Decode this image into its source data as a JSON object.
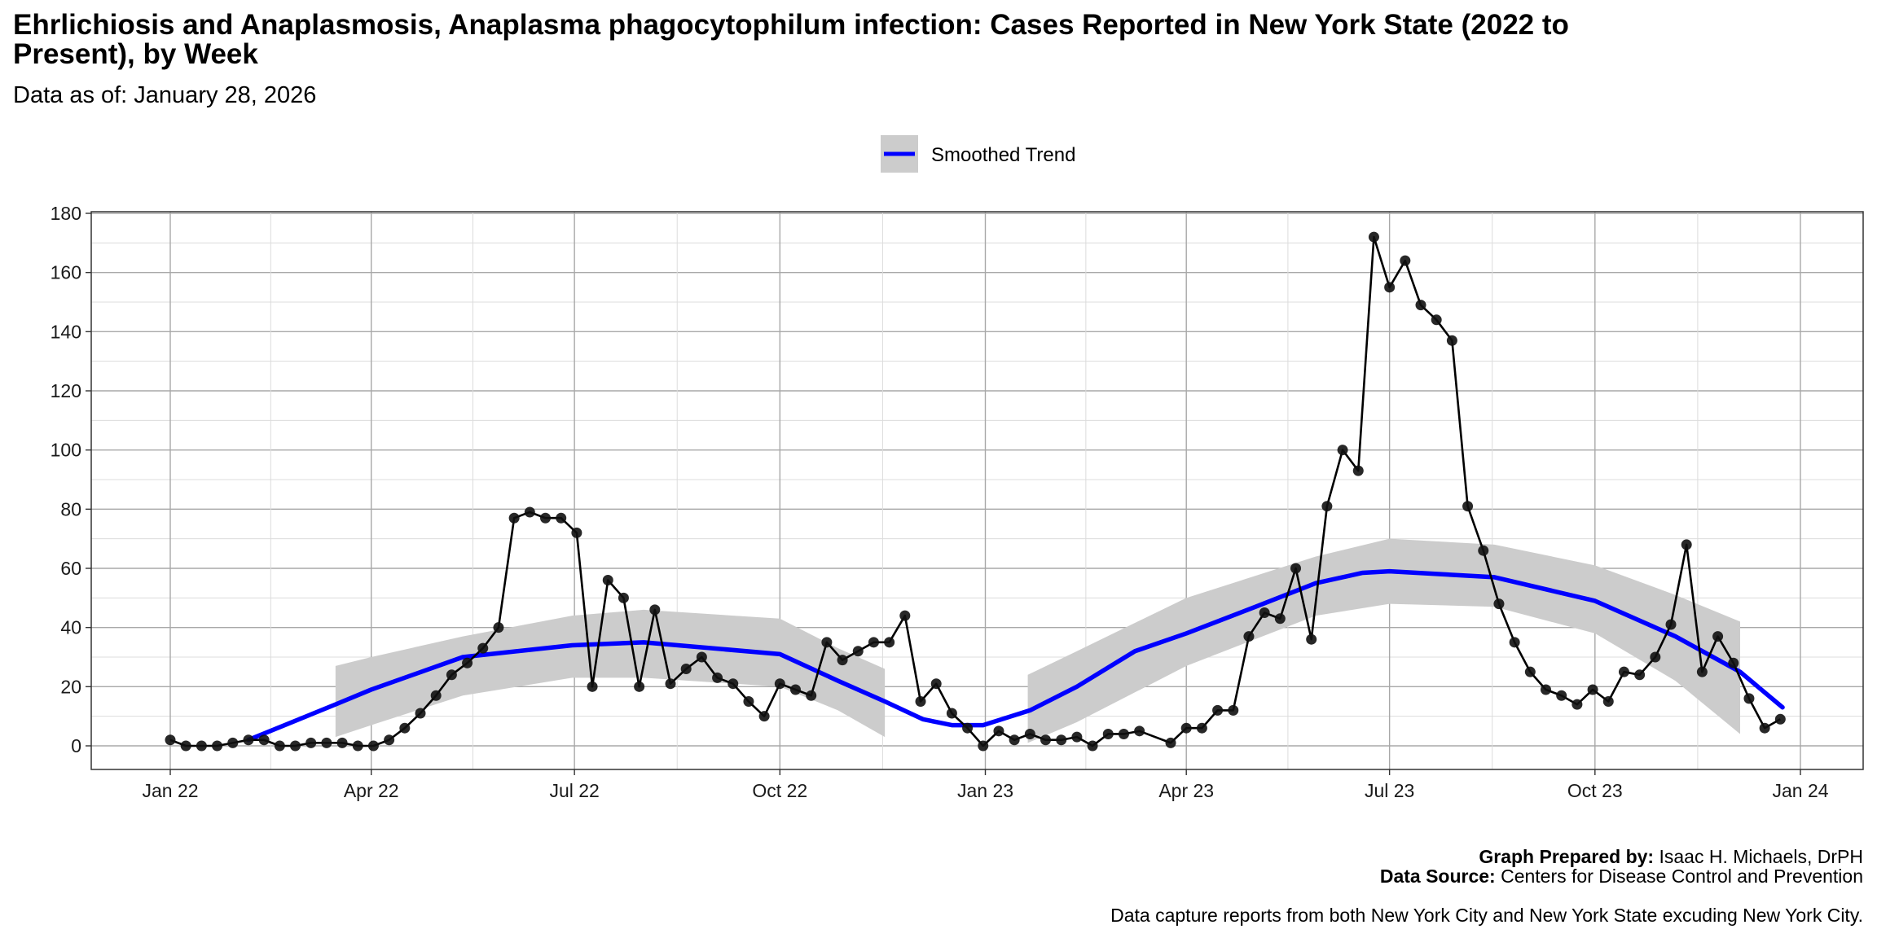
{
  "title_line1": "Ehrlichiosis and Anaplasmosis, Anaplasma phagocytophilum infection: Cases Reported in New York State (2022 to",
  "title_line2": "Present), by Week",
  "subtitle": "Data as of: January 28, 2026",
  "caption": {
    "prepared_label": "Graph Prepared by:",
    "prepared_value": " Isaac H. Michaels, DrPH",
    "source_label": "Data Source:",
    "source_value": " Centers for Disease Control and Prevention",
    "note": "Data capture reports from both New York City and New York State excuding New York City."
  },
  "chart_data": {
    "type": "line",
    "legend": {
      "position": "top",
      "entries": [
        "Smoothed Trend"
      ]
    },
    "colors": {
      "points": "#000000",
      "trend": "#0000ff",
      "band": "#cccccc"
    },
    "grid": true,
    "xlabel": "",
    "ylabel": "",
    "ylim": [
      0,
      180
    ],
    "yticks": [
      0,
      20,
      40,
      60,
      80,
      100,
      120,
      140,
      160,
      180
    ],
    "xlim": [
      "2022-01-01",
      "2024-01-01"
    ],
    "xticks": [
      {
        "date": "2022-01-01",
        "label": "Jan 22"
      },
      {
        "date": "2022-04-01",
        "label": "Apr 22"
      },
      {
        "date": "2022-07-01",
        "label": "Jul 22"
      },
      {
        "date": "2022-10-01",
        "label": "Oct 22"
      },
      {
        "date": "2023-01-01",
        "label": "Jan 23"
      },
      {
        "date": "2023-04-01",
        "label": "Apr 23"
      },
      {
        "date": "2023-07-01",
        "label": "Jul 23"
      },
      {
        "date": "2023-10-01",
        "label": "Oct 23"
      },
      {
        "date": "2024-01-01",
        "label": "Jan 24"
      }
    ],
    "cases": {
      "x": [
        "2022-01-01",
        "2022-01-08",
        "2022-01-15",
        "2022-01-22",
        "2022-01-29",
        "2022-02-05",
        "2022-02-12",
        "2022-02-19",
        "2022-02-26",
        "2022-03-05",
        "2022-03-12",
        "2022-03-19",
        "2022-03-26",
        "2022-04-02",
        "2022-04-09",
        "2022-04-16",
        "2022-04-23",
        "2022-04-30",
        "2022-05-07",
        "2022-05-14",
        "2022-05-21",
        "2022-05-28",
        "2022-06-04",
        "2022-06-11",
        "2022-06-18",
        "2022-06-25",
        "2022-07-02",
        "2022-07-09",
        "2022-07-16",
        "2022-07-23",
        "2022-07-30",
        "2022-08-06",
        "2022-08-13",
        "2022-08-20",
        "2022-08-27",
        "2022-09-03",
        "2022-09-10",
        "2022-09-17",
        "2022-09-24",
        "2022-10-01",
        "2022-10-08",
        "2022-10-15",
        "2022-10-22",
        "2022-10-29",
        "2022-11-05",
        "2022-11-12",
        "2022-11-19",
        "2022-11-26",
        "2022-12-03",
        "2022-12-10",
        "2022-12-17",
        "2022-12-24",
        "2022-12-31",
        "2023-01-07",
        "2023-01-14",
        "2023-01-21",
        "2023-01-28",
        "2023-02-04",
        "2023-02-11",
        "2023-02-18",
        "2023-02-25",
        "2023-03-04",
        "2023-03-11",
        "2023-03-25",
        "2023-04-01",
        "2023-04-08",
        "2023-04-15",
        "2023-04-22",
        "2023-04-29",
        "2023-05-06",
        "2023-05-13",
        "2023-05-20",
        "2023-05-27",
        "2023-06-03",
        "2023-06-10",
        "2023-06-17",
        "2023-06-24",
        "2023-07-01",
        "2023-07-08",
        "2023-07-15",
        "2023-07-22",
        "2023-07-29",
        "2023-08-05",
        "2023-08-12",
        "2023-08-19",
        "2023-08-26",
        "2023-09-02",
        "2023-09-09",
        "2023-09-16",
        "2023-09-23",
        "2023-09-30",
        "2023-10-07",
        "2023-10-14",
        "2023-10-21",
        "2023-10-28",
        "2023-11-04",
        "2023-11-11",
        "2023-11-18",
        "2023-11-25",
        "2023-12-02",
        "2023-12-09",
        "2023-12-16",
        "2023-12-23"
      ],
      "y": [
        2,
        0,
        0,
        0,
        1,
        2,
        2,
        0,
        0,
        1,
        1,
        1,
        0,
        0,
        2,
        6,
        11,
        17,
        24,
        28,
        33,
        40,
        77,
        79,
        77,
        77,
        72,
        20,
        56,
        50,
        20,
        46,
        21,
        26,
        30,
        23,
        21,
        15,
        10,
        21,
        19,
        17,
        35,
        29,
        32,
        35,
        35,
        44,
        15,
        21,
        11,
        6,
        0,
        5,
        2,
        4,
        2,
        2,
        3,
        0,
        4,
        4,
        5,
        1,
        6,
        6,
        12,
        12,
        37,
        45,
        43,
        60,
        36,
        81,
        100,
        93,
        172,
        155,
        164,
        149,
        144,
        137,
        81,
        66,
        48,
        35,
        25,
        19,
        17,
        14,
        19,
        15,
        25,
        24,
        30,
        41,
        68,
        25,
        37,
        28,
        16,
        6,
        9
      ]
    },
    "trend": {
      "name": "Smoothed Trend",
      "x": [
        "2022-02-05",
        "2022-03-16",
        "2022-04-01",
        "2022-05-12",
        "2022-06-30",
        "2022-08-01",
        "2022-10-01",
        "2022-10-27",
        "2022-11-17",
        "2022-12-04",
        "2022-12-17",
        "2022-12-31",
        "2023-01-21",
        "2023-02-11",
        "2023-03-09",
        "2023-04-01",
        "2023-05-02",
        "2023-05-29",
        "2023-06-19",
        "2023-07-01",
        "2023-08-17",
        "2023-10-01",
        "2023-11-06",
        "2023-12-05",
        "2023-12-24"
      ],
      "y": [
        2,
        14,
        19,
        30,
        34,
        35,
        31,
        22,
        15,
        9,
        7,
        7,
        12,
        20,
        32,
        38,
        47,
        55,
        58.5,
        59,
        57,
        49,
        37,
        25,
        13
      ]
    },
    "bands": [
      {
        "x": [
          "2022-03-16",
          "2022-04-01",
          "2022-05-12",
          "2022-06-30",
          "2022-08-01",
          "2022-10-01",
          "2022-10-27",
          "2022-11-17"
        ],
        "lower": [
          3,
          7,
          17,
          23,
          23,
          20,
          12,
          3
        ],
        "upper": [
          27,
          30,
          37,
          44,
          46,
          43,
          33,
          26
        ]
      },
      {
        "x": [
          "2023-01-20",
          "2023-02-11",
          "2023-04-01",
          "2023-05-29",
          "2023-07-01",
          "2023-08-17",
          "2023-10-01",
          "2023-11-06",
          "2023-12-05"
        ],
        "lower": [
          1,
          8,
          27,
          44,
          48,
          47,
          38,
          22,
          4
        ],
        "upper": [
          24,
          32,
          50,
          64,
          70,
          68,
          61,
          51,
          42
        ]
      }
    ]
  }
}
